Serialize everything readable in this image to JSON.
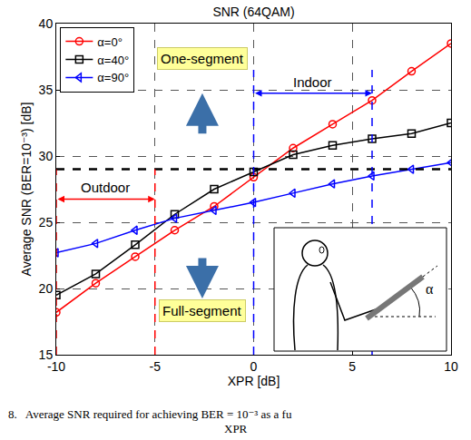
{
  "chart_data": {
    "type": "line",
    "title": "SNR (64QAM)",
    "x_label": "XPR [dB]",
    "y_label": "Average SNR (BER=10⁻³) [dB]",
    "x": [
      -10,
      -8,
      -6,
      -4,
      -2,
      0,
      2,
      4,
      6,
      8,
      10
    ],
    "series": [
      {
        "name": "α=0°",
        "color": "#ff0000",
        "marker": "circle-open",
        "values": [
          18.2,
          20.4,
          22.4,
          24.4,
          26.2,
          28.4,
          30.6,
          32.4,
          34.2,
          36.4,
          38.5
        ]
      },
      {
        "name": "α=40°",
        "color": "#000000",
        "marker": "square-open",
        "values": [
          19.5,
          21.1,
          23.3,
          25.6,
          27.5,
          28.8,
          30.1,
          30.8,
          31.3,
          31.7,
          32.5
        ]
      },
      {
        "name": "α=90°",
        "color": "#0000ff",
        "marker": "triangle-left-open",
        "values": [
          22.7,
          23.4,
          24.4,
          25.3,
          25.9,
          26.5,
          27.2,
          27.9,
          28.5,
          29.0,
          29.5
        ]
      }
    ],
    "xlim": [
      -10,
      10
    ],
    "xticks": [
      -10,
      -5,
      0,
      5,
      10
    ],
    "ylim": [
      15,
      40
    ],
    "yticks": [
      15,
      20,
      25,
      30,
      35,
      40
    ],
    "grid": true,
    "legend": "upper left",
    "reference_y": 29,
    "annotations": [
      {
        "text": "One-segment"
      },
      {
        "text": "Full-segment"
      },
      {
        "text": "Outdoor",
        "x": [
          -10,
          -5
        ],
        "color": "#ff0000"
      },
      {
        "text": "Indoor",
        "x": [
          0,
          6
        ],
        "color": "#0000ff"
      },
      {
        "text": "α"
      }
    ],
    "caption": [
      "8.   Average SNR required for achieving BER = 10⁻³ as a fu",
      "XPR"
    ]
  }
}
